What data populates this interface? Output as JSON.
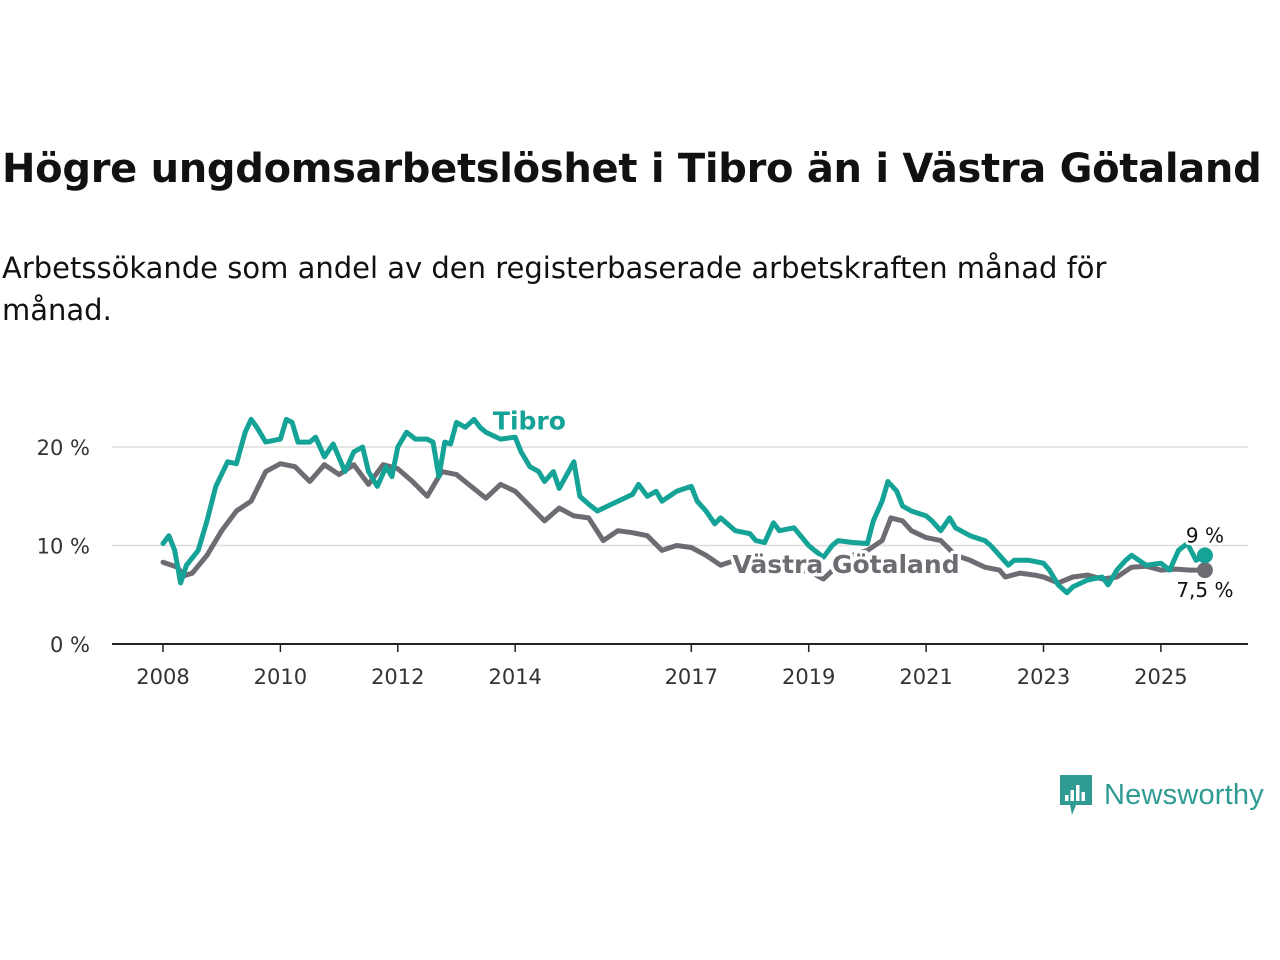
{
  "title": "Högre ungdomsarbetslöshet i Tibro än i Västra Götaland",
  "subtitle": "Arbetssökande som andel av den registerbaserade arbetskraften månad för månad.",
  "brand": {
    "name": "Newsworthy",
    "icon": "newsworthy-logo-icon"
  },
  "colors": {
    "tibro": "#14a396",
    "region": "#6f6b72",
    "grid": "#dddddd",
    "axis": "#222222"
  },
  "chart_data": {
    "type": "line",
    "title": "Högre ungdomsarbetslöshet i Tibro än i Västra Götaland",
    "xlabel": "",
    "ylabel": "",
    "ylim": [
      0,
      20
    ],
    "xlim": [
      2008,
      2026
    ],
    "grid": true,
    "y_ticks": [
      {
        "value": 0,
        "label": "0 %"
      },
      {
        "value": 10,
        "label": "10 %"
      },
      {
        "value": 20,
        "label": "20 %"
      }
    ],
    "x_ticks": [
      {
        "value": 2008,
        "label": "2008"
      },
      {
        "value": 2010,
        "label": "2010"
      },
      {
        "value": 2012,
        "label": "2012"
      },
      {
        "value": 2014,
        "label": "2014"
      },
      {
        "value": 2017,
        "label": "2017"
      },
      {
        "value": 2019,
        "label": "2019"
      },
      {
        "value": 2021,
        "label": "2021"
      },
      {
        "value": 2023,
        "label": "2023"
      },
      {
        "value": 2025,
        "label": "2025"
      }
    ],
    "series": [
      {
        "name": "Västra Götaland",
        "label": "Västra Götaland",
        "end_label": "7,5 %",
        "points": [
          [
            2008,
            8.3
          ],
          [
            2008.25,
            7.8
          ],
          [
            2008.35,
            6.9
          ],
          [
            2008.5,
            7.2
          ],
          [
            2008.75,
            9.0
          ],
          [
            2009,
            11.5
          ],
          [
            2009.25,
            13.5
          ],
          [
            2009.5,
            14.5
          ],
          [
            2009.75,
            17.5
          ],
          [
            2010,
            18.3
          ],
          [
            2010.25,
            18.0
          ],
          [
            2010.5,
            16.5
          ],
          [
            2010.75,
            18.2
          ],
          [
            2011,
            17.2
          ],
          [
            2011.25,
            18.2
          ],
          [
            2011.5,
            16.2
          ],
          [
            2011.75,
            18.2
          ],
          [
            2012,
            17.8
          ],
          [
            2012.25,
            16.5
          ],
          [
            2012.5,
            15.0
          ],
          [
            2012.75,
            17.5
          ],
          [
            2013,
            17.2
          ],
          [
            2013.25,
            16.0
          ],
          [
            2013.5,
            14.8
          ],
          [
            2013.75,
            16.2
          ],
          [
            2014,
            15.5
          ],
          [
            2014.25,
            14.0
          ],
          [
            2014.5,
            12.5
          ],
          [
            2014.75,
            13.8
          ],
          [
            2015,
            13.0
          ],
          [
            2015.25,
            12.8
          ],
          [
            2015.5,
            10.5
          ],
          [
            2015.75,
            11.5
          ],
          [
            2016,
            11.3
          ],
          [
            2016.25,
            11.0
          ],
          [
            2016.5,
            9.5
          ],
          [
            2016.75,
            10.0
          ],
          [
            2017,
            9.8
          ],
          [
            2017.25,
            9.0
          ],
          [
            2017.5,
            8.0
          ],
          [
            2017.75,
            8.5
          ],
          [
            2018,
            8.2
          ],
          [
            2018.25,
            7.5
          ],
          [
            2018.5,
            7.7
          ],
          [
            2018.75,
            7.5
          ],
          [
            2019,
            7.4
          ],
          [
            2019.25,
            6.6
          ],
          [
            2019.5,
            8.0
          ],
          [
            2019.75,
            9.0
          ],
          [
            2020,
            9.5
          ],
          [
            2020.25,
            10.5
          ],
          [
            2020.4,
            12.8
          ],
          [
            2020.6,
            12.5
          ],
          [
            2020.75,
            11.5
          ],
          [
            2021,
            10.8
          ],
          [
            2021.25,
            10.5
          ],
          [
            2021.5,
            9.0
          ],
          [
            2021.75,
            8.5
          ],
          [
            2022,
            7.8
          ],
          [
            2022.25,
            7.5
          ],
          [
            2022.35,
            6.8
          ],
          [
            2022.6,
            7.2
          ],
          [
            2022.85,
            7.0
          ],
          [
            2023,
            6.8
          ],
          [
            2023.25,
            6.2
          ],
          [
            2023.5,
            6.8
          ],
          [
            2023.75,
            7.0
          ],
          [
            2024,
            6.6
          ],
          [
            2024.25,
            6.8
          ],
          [
            2024.5,
            7.8
          ],
          [
            2024.75,
            7.9
          ],
          [
            2025,
            7.5
          ],
          [
            2025.25,
            7.6
          ],
          [
            2025.5,
            7.5
          ],
          [
            2025.75,
            7.5
          ]
        ]
      },
      {
        "name": "Tibro",
        "label": "Tibro",
        "end_label": "9 %",
        "points": [
          [
            2008,
            10.2
          ],
          [
            2008.1,
            11.0
          ],
          [
            2008.2,
            9.5
          ],
          [
            2008.3,
            6.2
          ],
          [
            2008.4,
            8.0
          ],
          [
            2008.6,
            9.5
          ],
          [
            2008.75,
            12.5
          ],
          [
            2008.9,
            16.0
          ],
          [
            2009.1,
            18.5
          ],
          [
            2009.25,
            18.3
          ],
          [
            2009.4,
            21.5
          ],
          [
            2009.5,
            22.8
          ],
          [
            2009.6,
            22.0
          ],
          [
            2009.75,
            20.5
          ],
          [
            2010,
            20.8
          ],
          [
            2010.1,
            22.8
          ],
          [
            2010.2,
            22.5
          ],
          [
            2010.3,
            20.5
          ],
          [
            2010.5,
            20.5
          ],
          [
            2010.6,
            21.0
          ],
          [
            2010.75,
            19.0
          ],
          [
            2010.9,
            20.3
          ],
          [
            2011.1,
            17.5
          ],
          [
            2011.25,
            19.5
          ],
          [
            2011.4,
            20.0
          ],
          [
            2011.5,
            17.5
          ],
          [
            2011.65,
            16.0
          ],
          [
            2011.8,
            18.0
          ],
          [
            2011.9,
            17.0
          ],
          [
            2012,
            20.0
          ],
          [
            2012.15,
            21.5
          ],
          [
            2012.3,
            20.8
          ],
          [
            2012.5,
            20.8
          ],
          [
            2012.6,
            20.5
          ],
          [
            2012.7,
            17.0
          ],
          [
            2012.8,
            20.5
          ],
          [
            2012.9,
            20.3
          ],
          [
            2013,
            22.5
          ],
          [
            2013.15,
            22.0
          ],
          [
            2013.3,
            22.8
          ],
          [
            2013.4,
            22.0
          ],
          [
            2013.5,
            21.5
          ],
          [
            2013.75,
            20.8
          ],
          [
            2014,
            21.0
          ],
          [
            2014.1,
            19.5
          ],
          [
            2014.25,
            18.0
          ],
          [
            2014.4,
            17.5
          ],
          [
            2014.5,
            16.5
          ],
          [
            2014.65,
            17.5
          ],
          [
            2014.75,
            15.8
          ],
          [
            2015,
            18.5
          ],
          [
            2015.1,
            15.0
          ],
          [
            2015.25,
            14.2
          ],
          [
            2015.4,
            13.5
          ],
          [
            2015.5,
            13.8
          ],
          [
            2015.75,
            14.5
          ],
          [
            2016,
            15.2
          ],
          [
            2016.1,
            16.2
          ],
          [
            2016.25,
            15.0
          ],
          [
            2016.4,
            15.5
          ],
          [
            2016.5,
            14.5
          ],
          [
            2016.75,
            15.5
          ],
          [
            2017,
            16.0
          ],
          [
            2017.1,
            14.5
          ],
          [
            2017.25,
            13.5
          ],
          [
            2017.4,
            12.2
          ],
          [
            2017.5,
            12.8
          ],
          [
            2017.75,
            11.5
          ],
          [
            2018,
            11.2
          ],
          [
            2018.1,
            10.5
          ],
          [
            2018.25,
            10.3
          ],
          [
            2018.4,
            12.3
          ],
          [
            2018.5,
            11.5
          ],
          [
            2018.75,
            11.8
          ],
          [
            2019,
            10.0
          ],
          [
            2019.1,
            9.5
          ],
          [
            2019.25,
            8.8
          ],
          [
            2019.4,
            10.0
          ],
          [
            2019.5,
            10.5
          ],
          [
            2019.75,
            10.3
          ],
          [
            2020,
            10.2
          ],
          [
            2020.1,
            12.5
          ],
          [
            2020.25,
            14.5
          ],
          [
            2020.35,
            16.5
          ],
          [
            2020.5,
            15.5
          ],
          [
            2020.6,
            14.0
          ],
          [
            2020.75,
            13.5
          ],
          [
            2021,
            13.0
          ],
          [
            2021.1,
            12.5
          ],
          [
            2021.25,
            11.5
          ],
          [
            2021.4,
            12.8
          ],
          [
            2021.5,
            11.8
          ],
          [
            2021.75,
            11.0
          ],
          [
            2022,
            10.5
          ],
          [
            2022.1,
            10.0
          ],
          [
            2022.25,
            9.0
          ],
          [
            2022.4,
            8.0
          ],
          [
            2022.5,
            8.5
          ],
          [
            2022.75,
            8.5
          ],
          [
            2023,
            8.2
          ],
          [
            2023.1,
            7.5
          ],
          [
            2023.25,
            6.0
          ],
          [
            2023.4,
            5.2
          ],
          [
            2023.5,
            5.8
          ],
          [
            2023.75,
            6.5
          ],
          [
            2024,
            6.8
          ],
          [
            2024.1,
            6.0
          ],
          [
            2024.25,
            7.5
          ],
          [
            2024.4,
            8.5
          ],
          [
            2024.5,
            9.0
          ],
          [
            2024.75,
            8.0
          ],
          [
            2025,
            8.2
          ],
          [
            2025.15,
            7.5
          ],
          [
            2025.3,
            9.5
          ],
          [
            2025.45,
            10.2
          ],
          [
            2025.6,
            8.5
          ],
          [
            2025.75,
            9.0
          ]
        ]
      }
    ]
  }
}
